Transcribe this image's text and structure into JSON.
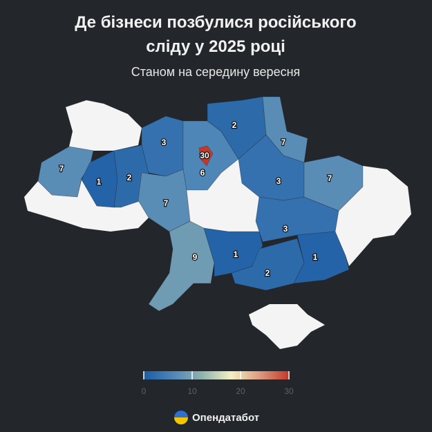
{
  "title_lines": [
    "Де бізнеси позбулися російського",
    "сліду у 2025 році"
  ],
  "subtitle": "Станом на середину вересня",
  "brand": "Опендатабот",
  "chart_data": {
    "type": "choropleth",
    "regions": [
      {
        "value": 7
      },
      {
        "value": 1
      },
      {
        "value": 2
      },
      {
        "value": 3
      },
      {
        "value": 6
      },
      {
        "value": 30
      },
      {
        "value": 2
      },
      {
        "value": 7
      },
      {
        "value": 3
      },
      {
        "value": 7
      },
      {
        "value": 7
      },
      {
        "value": 3
      },
      {
        "value": 9
      },
      {
        "value": 1
      },
      {
        "value": 2
      },
      {
        "value": 1
      }
    ],
    "scale": {
      "lim": [
        0,
        30
      ],
      "ticks": [
        0,
        10,
        20,
        30
      ],
      "colors": [
        "#1b5ca3",
        "#4f86b8",
        "#8fb2ae",
        "#f3efc4",
        "#dc9a80",
        "#c0392b"
      ]
    }
  }
}
